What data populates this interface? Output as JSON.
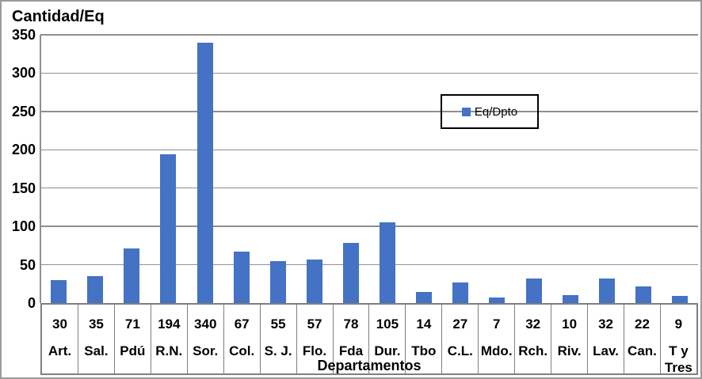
{
  "chart_data": {
    "type": "bar",
    "title": "Cantidad/Eq",
    "xlabel": "Departamentos",
    "categories": [
      "Art.",
      "Sal.",
      "Pdú",
      "R.N.",
      "Sor.",
      "Col.",
      "S. J.",
      "Flo.",
      "Fda",
      "Dur.",
      "Tbo",
      "C.L.",
      "Mdo.",
      "Rch.",
      "Riv.",
      "Lav.",
      "Can.",
      "T y Tres"
    ],
    "series": [
      {
        "name": "Eq/Dpto",
        "color": "#4472C4",
        "values": [
          30,
          35,
          71,
          194,
          340,
          67,
          55,
          57,
          78,
          105,
          14,
          27,
          7,
          32,
          10,
          32,
          22,
          9
        ]
      }
    ],
    "value_labels_shown_below_axis": true,
    "ylim": [
      0,
      350
    ],
    "yticks": [
      0,
      50,
      100,
      150,
      200,
      250,
      300,
      350
    ],
    "grid": "horizontal",
    "legend": {
      "label": "Eq/Dpto",
      "marker_color": "#4472C4",
      "position": "top-center-inside-plot",
      "border_color": "#000000"
    },
    "colors": {
      "bar": "#4472C4",
      "gridline": "#8f8f8f",
      "axis": "#7f7f7f"
    }
  }
}
